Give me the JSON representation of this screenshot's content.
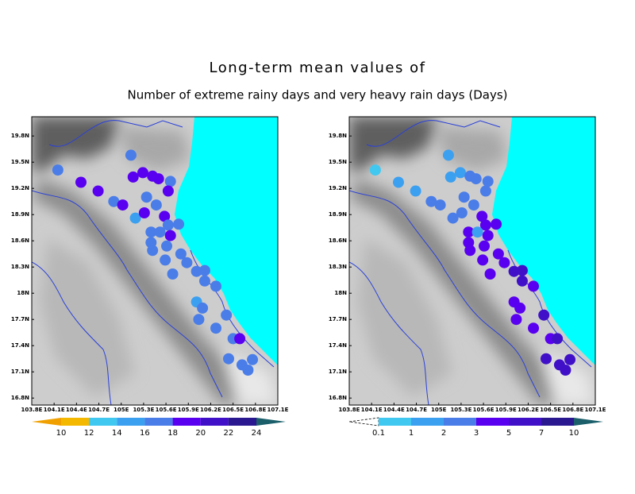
{
  "title": "Long-term mean values of",
  "subtitle": "Number of extreme rainy days and very heavy rain days (Days)",
  "chart_data": [
    {
      "type": "map",
      "xlim": [
        103.8,
        107.1
      ],
      "ylim": [
        16.72,
        20.02
      ],
      "xticks": [
        {
          "value": 103.8,
          "label": "103.8E"
        },
        {
          "value": 104.1,
          "label": "104.1E"
        },
        {
          "value": 104.4,
          "label": "104.4E"
        },
        {
          "value": 104.7,
          "label": "104.7E"
        },
        {
          "value": 105,
          "label": "105E"
        },
        {
          "value": 105.3,
          "label": "105.3E"
        },
        {
          "value": 105.6,
          "label": "105.6E"
        },
        {
          "value": 105.9,
          "label": "105.9E"
        },
        {
          "value": 106.2,
          "label": "106.2E"
        },
        {
          "value": 106.5,
          "label": "106.5E"
        },
        {
          "value": 106.8,
          "label": "106.8E"
        },
        {
          "value": 107.1,
          "label": "107.1E"
        }
      ],
      "yticks": [
        {
          "value": 16.8,
          "label": "16.8N"
        },
        {
          "value": 17.1,
          "label": "17.1N"
        },
        {
          "value": 17.4,
          "label": "17.4N"
        },
        {
          "value": 17.7,
          "label": "17.7N"
        },
        {
          "value": 18,
          "label": "18N"
        },
        {
          "value": 18.3,
          "label": "18.3N"
        },
        {
          "value": 18.6,
          "label": "18.6N"
        },
        {
          "value": 18.9,
          "label": "18.9N"
        },
        {
          "value": 19.2,
          "label": "19.2N"
        },
        {
          "value": 19.5,
          "label": "19.5N"
        },
        {
          "value": 19.8,
          "label": "19.8N"
        }
      ],
      "x": [
        104.15,
        104.46,
        104.69,
        104.9,
        105.02,
        105.13,
        105.16,
        105.29,
        105.42,
        105.5,
        105.66,
        105.63,
        105.34,
        105.19,
        105.31,
        105.47,
        105.58,
        105.63,
        105.77,
        105.66,
        105.4,
        105.52,
        105.4,
        105.42,
        105.61,
        105.59,
        105.8,
        105.88,
        105.69,
        106.01,
        106.12,
        106.12,
        106.27,
        106.01,
        106.09,
        106.04,
        106.27,
        106.41,
        106.5,
        106.59,
        106.44,
        106.62,
        106.76,
        106.7
      ],
      "y": [
        19.41,
        19.27,
        19.17,
        19.05,
        19.01,
        19.58,
        19.33,
        19.38,
        19.34,
        19.31,
        19.28,
        19.17,
        19.1,
        18.86,
        18.92,
        19.01,
        18.88,
        18.78,
        18.79,
        18.66,
        18.7,
        18.7,
        18.58,
        18.49,
        18.54,
        18.38,
        18.45,
        18.35,
        18.22,
        18.25,
        18.26,
        18.14,
        18.08,
        17.9,
        17.83,
        17.7,
        17.6,
        17.75,
        17.48,
        17.48,
        17.25,
        17.18,
        17.24,
        17.12
      ],
      "values": [
        17,
        19,
        19,
        17,
        19,
        17,
        19,
        19,
        19,
        19,
        17,
        19,
        17,
        15,
        19,
        17,
        19,
        17,
        17,
        19,
        17,
        17,
        17,
        17,
        17,
        17,
        17,
        17,
        17,
        17,
        17,
        17,
        17,
        15,
        17,
        17,
        17,
        17,
        17,
        19,
        17,
        17,
        17,
        17
      ],
      "colorbar": {
        "levels": [
          10,
          12,
          14,
          16,
          18,
          20,
          22,
          24
        ],
        "colors": [
          "#f0a000",
          "#f5b800",
          "#40c8f0",
          "#3ca0f0",
          "#4a7de8",
          "#5a00f0",
          "#4010c8",
          "#2a1890",
          "#1a5f6a"
        ]
      }
    },
    {
      "type": "map",
      "xlim": [
        103.8,
        107.1
      ],
      "ylim": [
        16.72,
        20.02
      ],
      "xticks": [
        {
          "value": 103.8,
          "label": "103.8E"
        },
        {
          "value": 104.1,
          "label": "104.1E"
        },
        {
          "value": 104.4,
          "label": "104.4E"
        },
        {
          "value": 104.7,
          "label": "104.7E"
        },
        {
          "value": 105,
          "label": "105E"
        },
        {
          "value": 105.3,
          "label": "105.3E"
        },
        {
          "value": 105.6,
          "label": "105.6E"
        },
        {
          "value": 105.9,
          "label": "105.9E"
        },
        {
          "value": 106.2,
          "label": "106.2E"
        },
        {
          "value": 106.5,
          "label": "106.5E"
        },
        {
          "value": 106.8,
          "label": "106.8E"
        },
        {
          "value": 107.1,
          "label": "107.1E"
        }
      ],
      "yticks": [
        {
          "value": 16.8,
          "label": "16.8N"
        },
        {
          "value": 17.1,
          "label": "17.1N"
        },
        {
          "value": 17.4,
          "label": "17.4N"
        },
        {
          "value": 17.7,
          "label": "17.7N"
        },
        {
          "value": 18,
          "label": "18N"
        },
        {
          "value": 18.3,
          "label": "18.3N"
        },
        {
          "value": 18.6,
          "label": "18.6N"
        },
        {
          "value": 18.9,
          "label": "18.9N"
        },
        {
          "value": 19.2,
          "label": "19.2N"
        },
        {
          "value": 19.5,
          "label": "19.5N"
        },
        {
          "value": 19.8,
          "label": "19.8N"
        }
      ],
      "x": [
        104.15,
        104.46,
        104.69,
        104.9,
        105.02,
        105.13,
        105.16,
        105.29,
        105.42,
        105.5,
        105.66,
        105.63,
        105.34,
        105.19,
        105.31,
        105.47,
        105.58,
        105.63,
        105.77,
        105.66,
        105.4,
        105.52,
        105.4,
        105.42,
        105.61,
        105.59,
        105.8,
        105.88,
        105.69,
        106.01,
        106.12,
        106.12,
        106.27,
        106.01,
        106.09,
        106.04,
        106.27,
        106.41,
        106.5,
        106.59,
        106.44,
        106.62,
        106.76,
        106.7
      ],
      "y": [
        19.41,
        19.27,
        19.17,
        19.05,
        19.01,
        19.58,
        19.33,
        19.38,
        19.34,
        19.31,
        19.28,
        19.17,
        19.1,
        18.86,
        18.92,
        19.01,
        18.88,
        18.78,
        18.79,
        18.66,
        18.7,
        18.7,
        18.58,
        18.49,
        18.54,
        18.38,
        18.45,
        18.35,
        18.22,
        18.25,
        18.26,
        18.14,
        18.08,
        17.9,
        17.83,
        17.7,
        17.6,
        17.75,
        17.48,
        17.48,
        17.25,
        17.18,
        17.24,
        17.12
      ],
      "values": [
        0.5,
        1.5,
        1.5,
        2.5,
        2.5,
        1.5,
        1.5,
        1.5,
        2.5,
        2.5,
        2.5,
        2.5,
        2.5,
        2.5,
        2.5,
        2.5,
        4,
        4,
        4,
        4,
        4,
        1.5,
        4,
        4,
        4,
        4,
        4,
        4,
        4,
        6,
        6,
        6,
        4,
        4,
        4,
        4,
        4,
        6,
        4,
        6,
        6,
        6,
        6,
        6
      ],
      "colorbar": {
        "levels": [
          0.1,
          1,
          2,
          3,
          5,
          7,
          10
        ],
        "colors": [
          "#ffffff",
          "#40c8f0",
          "#3ca0f0",
          "#4a7de8",
          "#5a00f0",
          "#4010c8",
          "#2a1890",
          "#1a5f6a"
        ]
      }
    }
  ]
}
